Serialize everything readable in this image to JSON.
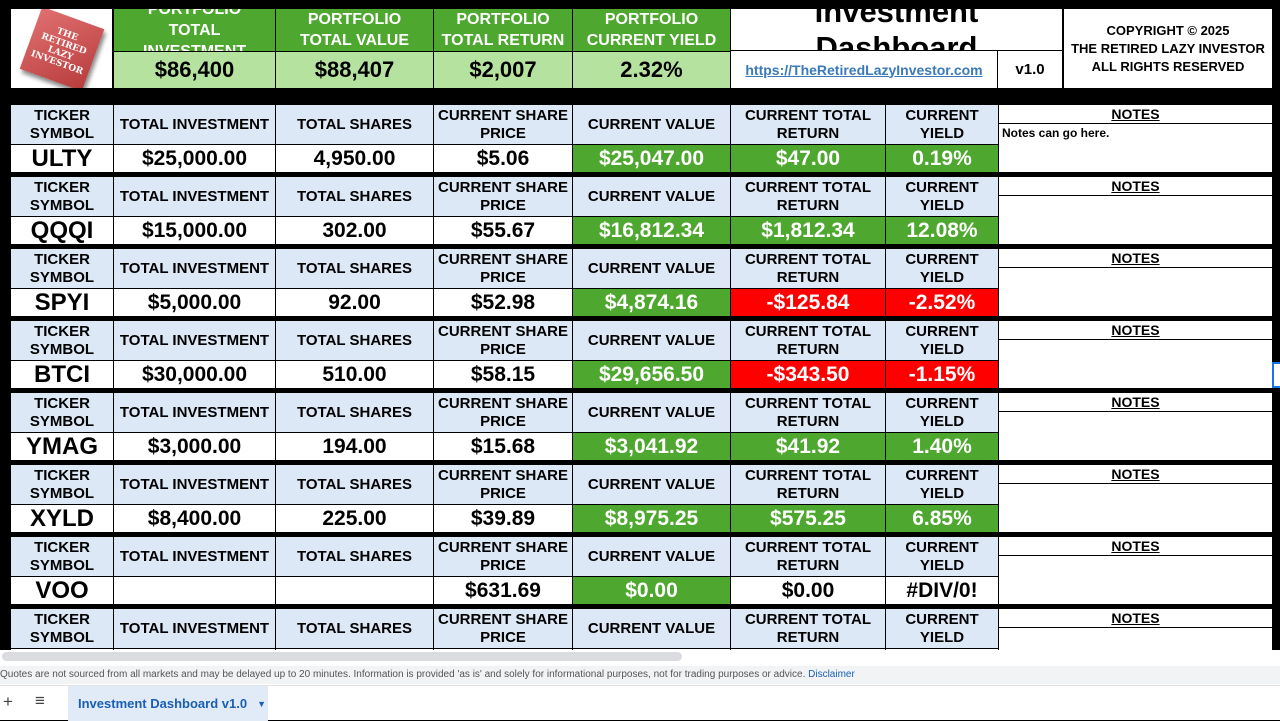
{
  "summary": {
    "logo_text": "THE RETIRED LAZY INVESTOR",
    "cards": [
      {
        "label": "PORTFOLIO TOTAL INVESTMENT",
        "value": "$86,400"
      },
      {
        "label": "PORTFOLIO TOTAL VALUE",
        "value": "$88,407"
      },
      {
        "label": "PORTFOLIO TOTAL RETURN",
        "value": "$2,007"
      },
      {
        "label": "PORTFOLIO CURRENT YIELD",
        "value": "2.32%"
      }
    ],
    "title": "Investment Dashboard",
    "link": "https://TheRetiredLazyInvestor.com",
    "version": "v1.0",
    "copyright": [
      "COPYRIGHT © 2025",
      "THE RETIRED LAZY INVESTOR",
      "ALL RIGHTS RESERVED"
    ]
  },
  "headers": [
    "TICKER SYMBOL",
    "TOTAL INVESTMENT",
    "TOTAL SHARES",
    "CURRENT SHARE PRICE",
    "CURRENT VALUE",
    "CURRENT TOTAL RETURN",
    "CURRENT YIELD",
    "NOTES"
  ],
  "holdings": [
    {
      "ticker": "ULTY",
      "investment": "$25,000.00",
      "shares": "4,950.00",
      "price": "$5.06",
      "value": "$25,047.00",
      "return": "$47.00",
      "yield": "0.19%",
      "status": "positive",
      "notes": "Notes can go here."
    },
    {
      "ticker": "QQQI",
      "investment": "$15,000.00",
      "shares": "302.00",
      "price": "$55.67",
      "value": "$16,812.34",
      "return": "$1,812.34",
      "yield": "12.08%",
      "status": "positive",
      "notes": ""
    },
    {
      "ticker": "SPYI",
      "investment": "$5,000.00",
      "shares": "92.00",
      "price": "$52.98",
      "value": "$4,874.16",
      "return": "-$125.84",
      "yield": "-2.52%",
      "status": "negative",
      "notes": ""
    },
    {
      "ticker": "BTCI",
      "investment": "$30,000.00",
      "shares": "510.00",
      "price": "$58.15",
      "value": "$29,656.50",
      "return": "-$343.50",
      "yield": "-1.15%",
      "status": "negative",
      "notes": ""
    },
    {
      "ticker": "YMAG",
      "investment": "$3,000.00",
      "shares": "194.00",
      "price": "$15.68",
      "value": "$3,041.92",
      "return": "$41.92",
      "yield": "1.40%",
      "status": "positive",
      "notes": ""
    },
    {
      "ticker": "XYLD",
      "investment": "$8,400.00",
      "shares": "225.00",
      "price": "$39.89",
      "value": "$8,975.25",
      "return": "$575.25",
      "yield": "6.85%",
      "status": "positive",
      "notes": ""
    },
    {
      "ticker": "VOO",
      "investment": "",
      "shares": "",
      "price": "$631.69",
      "value": "$0.00",
      "return": "$0.00",
      "yield": "#DIV/0!",
      "status": "empty",
      "notes": ""
    },
    {
      "ticker": "",
      "investment": "",
      "shares": "",
      "price": "",
      "value": "",
      "return": "",
      "yield": "",
      "status": "empty",
      "notes": ""
    }
  ],
  "footer": {
    "disclaimer": "Quotes are not sourced from all markets and may be delayed up to 20 minutes. Information is provided 'as is' and solely for informational purposes, not for trading purposes or advice.",
    "disclaimer_link": "Disclaimer",
    "sheet_tab": "Investment Dashboard v1.0"
  },
  "colors": {
    "positive": "#4ea72e",
    "negative": "#ff0000",
    "header": "#dce8f5",
    "summary_value": "#b6e2a0"
  }
}
